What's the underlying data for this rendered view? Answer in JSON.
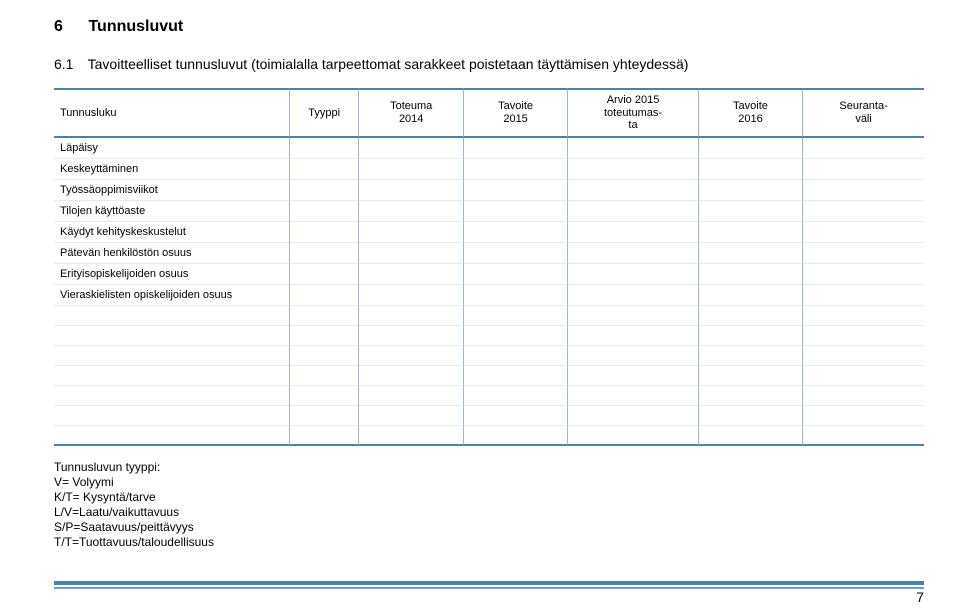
{
  "section": {
    "number": "6",
    "title": "Tunnusluvut"
  },
  "subsection": {
    "number": "6.1",
    "title": "Tavoitteelliset tunnusluvut (toimialalla tarpeettomat sarakkeet poistetaan täyttämisen yhteydessä)"
  },
  "table": {
    "columns": [
      {
        "key": "c0",
        "label": "Tunnusluku"
      },
      {
        "key": "c1",
        "label": "Tyyppi"
      },
      {
        "key": "c2",
        "label": "Toteuma\n2014"
      },
      {
        "key": "c3",
        "label": "Tavoite\n2015"
      },
      {
        "key": "c4",
        "label": "Arvio 2015\ntoteutumas-\nta"
      },
      {
        "key": "c5",
        "label": "Tavoite\n2016"
      },
      {
        "key": "c6",
        "label": "Seuranta-\nväli"
      }
    ],
    "rows": [
      [
        "Läpäisy",
        "",
        "",
        "",
        "",
        "",
        ""
      ],
      [
        "Keskeyttäminen",
        "",
        "",
        "",
        "",
        "",
        ""
      ],
      [
        "Työssäoppimisviikot",
        "",
        "",
        "",
        "",
        "",
        ""
      ],
      [
        "Tilojen käyttöaste",
        "",
        "",
        "",
        "",
        "",
        ""
      ],
      [
        "Käydyt kehityskeskustelut",
        "",
        "",
        "",
        "",
        "",
        ""
      ],
      [
        "Pätevän henkilöstön osuus",
        "",
        "",
        "",
        "",
        "",
        ""
      ],
      [
        "Erityisopiskelijoiden osuus",
        "",
        "",
        "",
        "",
        "",
        ""
      ],
      [
        "Vieraskielisten opiskelijoiden osuus",
        "",
        "",
        "",
        "",
        "",
        ""
      ],
      [
        "",
        "",
        "",
        "",
        "",
        "",
        ""
      ],
      [
        "",
        "",
        "",
        "",
        "",
        "",
        ""
      ],
      [
        "",
        "",
        "",
        "",
        "",
        "",
        ""
      ],
      [
        "",
        "",
        "",
        "",
        "",
        "",
        ""
      ],
      [
        "",
        "",
        "",
        "",
        "",
        "",
        ""
      ],
      [
        "",
        "",
        "",
        "",
        "",
        "",
        ""
      ],
      [
        "",
        "",
        "",
        "",
        "",
        "",
        ""
      ]
    ]
  },
  "legend": {
    "lead": "Tunnusluvun tyyppi:",
    "lines": [
      "V= Volyymi",
      "K/T= Kysyntä/tarve",
      "L/V=Laatu/vaikuttavuus",
      "S/P=Saatavuus/peittävyys",
      "T/T=Tuottavuus/taloudellisuus"
    ]
  },
  "page_number": "7"
}
